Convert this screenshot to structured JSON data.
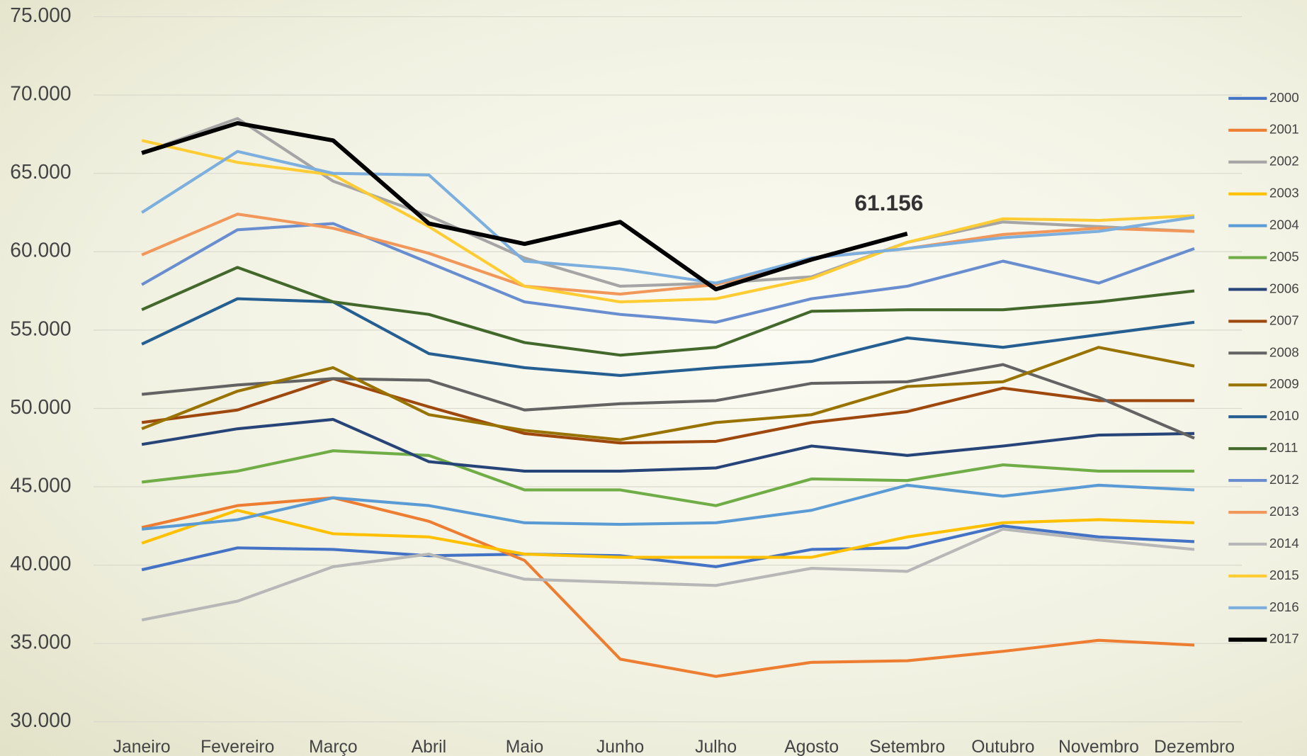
{
  "chart_data": {
    "type": "line",
    "categories": [
      "Janeiro",
      "Fevereiro",
      "Março",
      "Abril",
      "Maio",
      "Junho",
      "Julho",
      "Agosto",
      "Setembro",
      "Outubro",
      "Novembro",
      "Dezembro"
    ],
    "ylim": [
      30000,
      75000
    ],
    "yticks": [
      {
        "value": 30000,
        "label": "30.000"
      },
      {
        "value": 35000,
        "label": "35.000"
      },
      {
        "value": 40000,
        "label": "40.000"
      },
      {
        "value": 45000,
        "label": "45.000"
      },
      {
        "value": 50000,
        "label": "50.000"
      },
      {
        "value": 55000,
        "label": "55.000"
      },
      {
        "value": 60000,
        "label": "60.000"
      },
      {
        "value": 65000,
        "label": "65.000"
      },
      {
        "value": 70000,
        "label": "70.000"
      },
      {
        "value": 75000,
        "label": "75.000"
      }
    ],
    "grid": true,
    "legend": "right",
    "series": [
      {
        "name": "2000",
        "color": "#4472c4",
        "values": [
          39700,
          41100,
          41000,
          40600,
          40700,
          40600,
          39900,
          41000,
          41100,
          42500,
          41800,
          41500
        ]
      },
      {
        "name": "2001",
        "color": "#ed7d31",
        "values": [
          42400,
          43800,
          44300,
          42800,
          40300,
          34000,
          32900,
          33800,
          33900,
          34500,
          35200,
          34900
        ]
      },
      {
        "name": "2002",
        "color": "#a5a5a5",
        "values": [
          66300,
          68500,
          64500,
          62300,
          59600,
          57800,
          58000,
          58400,
          60600,
          61900,
          61600,
          61300
        ]
      },
      {
        "name": "2003",
        "color": "#ffc000",
        "values": [
          41400,
          43500,
          42000,
          41800,
          40700,
          40500,
          40500,
          40500,
          41800,
          42700,
          42900,
          42700
        ]
      },
      {
        "name": "2004",
        "color": "#5b9bd5",
        "values": [
          42300,
          42900,
          44300,
          43800,
          42700,
          42600,
          42700,
          43500,
          45100,
          44400,
          45100,
          44800
        ]
      },
      {
        "name": "2005",
        "color": "#70ad47",
        "values": [
          45300,
          46000,
          47300,
          47000,
          44800,
          44800,
          43800,
          45500,
          45400,
          46400,
          46000,
          46000
        ]
      },
      {
        "name": "2006",
        "color": "#264478",
        "values": [
          47700,
          48700,
          49300,
          46600,
          46000,
          46000,
          46200,
          47600,
          47000,
          47600,
          48300,
          48400
        ]
      },
      {
        "name": "2007",
        "color": "#9e480e",
        "values": [
          49100,
          49900,
          51900,
          50100,
          48400,
          47800,
          47900,
          49100,
          49800,
          51300,
          50500,
          50500
        ]
      },
      {
        "name": "2008",
        "color": "#636363",
        "values": [
          50900,
          51500,
          51900,
          51800,
          49900,
          50300,
          50500,
          51600,
          51700,
          52800,
          50700,
          48100
        ]
      },
      {
        "name": "2009",
        "color": "#997300",
        "values": [
          48700,
          51100,
          52600,
          49600,
          48600,
          48000,
          49100,
          49600,
          51400,
          51700,
          53900,
          52700
        ]
      },
      {
        "name": "2010",
        "color": "#255e91",
        "values": [
          54100,
          57000,
          56800,
          53500,
          52600,
          52100,
          52600,
          53000,
          54500,
          53900,
          54700,
          55500
        ]
      },
      {
        "name": "2011",
        "color": "#43682b",
        "values": [
          56300,
          59000,
          56800,
          56000,
          54200,
          53400,
          53900,
          56200,
          56300,
          56300,
          56800,
          57500
        ]
      },
      {
        "name": "2012",
        "color": "#698ed0",
        "values": [
          57900,
          61400,
          61800,
          59300,
          56800,
          56000,
          55500,
          57000,
          57800,
          59400,
          58000,
          60200
        ]
      },
      {
        "name": "2013",
        "color": "#f1975a",
        "values": [
          59800,
          62400,
          61500,
          59900,
          57800,
          57300,
          57900,
          59600,
          60200,
          61100,
          61500,
          61300
        ]
      },
      {
        "name": "2014",
        "color": "#b7b7b7",
        "values": [
          36500,
          37700,
          39900,
          40700,
          39100,
          38900,
          38700,
          39800,
          39600,
          42300,
          41600,
          41000
        ]
      },
      {
        "name": "2015",
        "color": "#ffcd33",
        "values": [
          67100,
          65700,
          64900,
          61600,
          57800,
          56800,
          57000,
          58300,
          60600,
          62100,
          62000,
          62300
        ]
      },
      {
        "name": "2016",
        "color": "#7cafdd",
        "values": [
          62500,
          66400,
          65000,
          64900,
          59400,
          58900,
          58000,
          59600,
          60200,
          60900,
          61300,
          62200
        ]
      },
      {
        "name": "2017",
        "color": "#000000",
        "width": 5,
        "values": [
          66300,
          68200,
          67100,
          61800,
          60500,
          61900,
          57600,
          59500,
          61156,
          null,
          null,
          null
        ],
        "value_labels": [
          null,
          null,
          null,
          null,
          null,
          null,
          null,
          null,
          "61.156",
          null,
          null,
          null
        ]
      }
    ]
  }
}
